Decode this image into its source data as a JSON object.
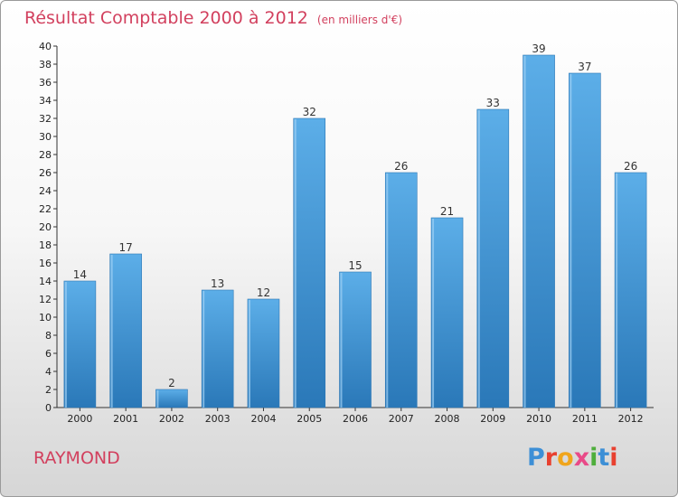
{
  "chart_data": {
    "type": "bar",
    "title": "Résultat Comptable 2000 à 2012",
    "subtitle": "(en milliers d'€)",
    "categories": [
      "2000",
      "2001",
      "2002",
      "2003",
      "2004",
      "2005",
      "2006",
      "2007",
      "2008",
      "2009",
      "2010",
      "2011",
      "2012"
    ],
    "values": [
      14,
      17,
      2,
      13,
      12,
      32,
      15,
      26,
      21,
      33,
      39,
      37,
      26
    ],
    "ylim": [
      0,
      40
    ],
    "yticks": [
      0,
      2,
      4,
      6,
      8,
      10,
      12,
      14,
      16,
      18,
      20,
      22,
      24,
      26,
      28,
      30,
      32,
      34,
      36,
      38,
      40
    ],
    "grid": false,
    "legend": "none"
  },
  "commune": "RAYMOND",
  "logo": {
    "letters": [
      "P",
      "r",
      "o",
      "x",
      "i",
      "t",
      "i"
    ]
  },
  "colors": {
    "title": "#d2405e",
    "bar_top": "#5caee8",
    "bar_bottom": "#2a78b8",
    "axis": "#333333"
  }
}
